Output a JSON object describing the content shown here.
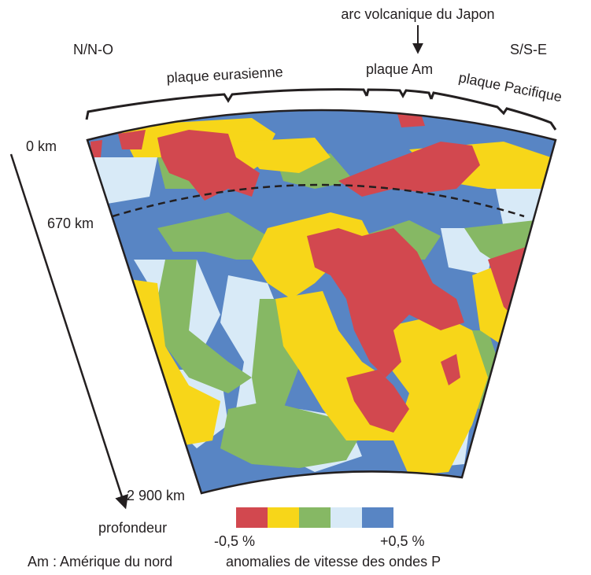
{
  "labels": {
    "arc": "arc volcanique du Japon",
    "nno": "N/N-O",
    "sse": "S/S-E",
    "eurasian_plate": "plaque eurasienne",
    "am_plate": "plaque Am",
    "pacific_plate": "plaque Pacifique",
    "depth_0": "0 km",
    "depth_670": "670 km",
    "depth_2900": "2 900 km",
    "depth_axis": "profondeur",
    "footnote": "Am : Amérique du nord"
  },
  "legend": {
    "title": "anomalies de vitesse des ondes P",
    "min_label": "-0,5 %",
    "max_label": "+0,5 %",
    "colors": [
      "#d2484f",
      "#f7d619",
      "#86b864",
      "#d8eaf7",
      "#5885c4"
    ]
  },
  "colors": {
    "red": "#d2484f",
    "yellow": "#f7d619",
    "green": "#86b864",
    "light_blue": "#d8eaf7",
    "blue": "#5885c4",
    "outline": "#231f20"
  }
}
